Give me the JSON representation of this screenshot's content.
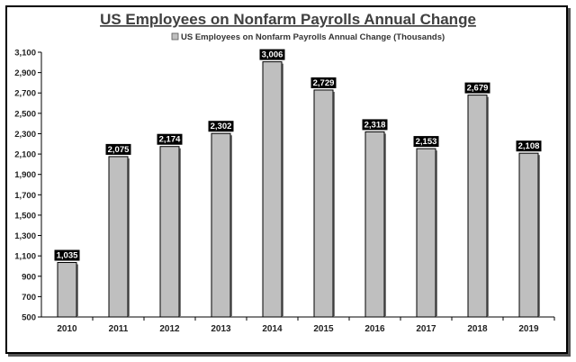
{
  "chart_data": {
    "type": "bar",
    "title": "US Employees on Nonfarm Payrolls Annual Change",
    "legend": {
      "label": "US Employees on Nonfarm Payrolls Annual Change (Thousands)",
      "position": "top-center"
    },
    "categories": [
      "2010",
      "2011",
      "2012",
      "2013",
      "2014",
      "2015",
      "2016",
      "2017",
      "2018",
      "2019"
    ],
    "series": [
      {
        "name": "US Employees on Nonfarm Payrolls Annual Change (Thousands)",
        "values": [
          1035,
          2075,
          2174,
          2302,
          3006,
          2729,
          2318,
          2153,
          2679,
          2108
        ],
        "data_labels": [
          "1,035",
          "2,075",
          "2,174",
          "2,302",
          "3,006",
          "2,729",
          "2,318",
          "2,153",
          "2,679",
          "2,108"
        ],
        "color": "#bfbfbf"
      }
    ],
    "ylim": [
      500,
      3100
    ],
    "yticks": [
      500,
      700,
      900,
      1100,
      1300,
      1500,
      1700,
      1900,
      2100,
      2300,
      2500,
      2700,
      2900,
      3100
    ],
    "ytick_labels": [
      "500",
      "700",
      "900",
      "1,100",
      "1,300",
      "1,500",
      "1,700",
      "1,900",
      "2,100",
      "2,300",
      "2,500",
      "2,700",
      "2,900",
      "3,100"
    ],
    "xlabel": "",
    "ylabel": "",
    "grid": false,
    "colors": {
      "bar": "#bfbfbf",
      "bar_edge": "#000000",
      "label_bg": "#000000",
      "label_text": "#ffffff",
      "title": "#404040"
    }
  }
}
